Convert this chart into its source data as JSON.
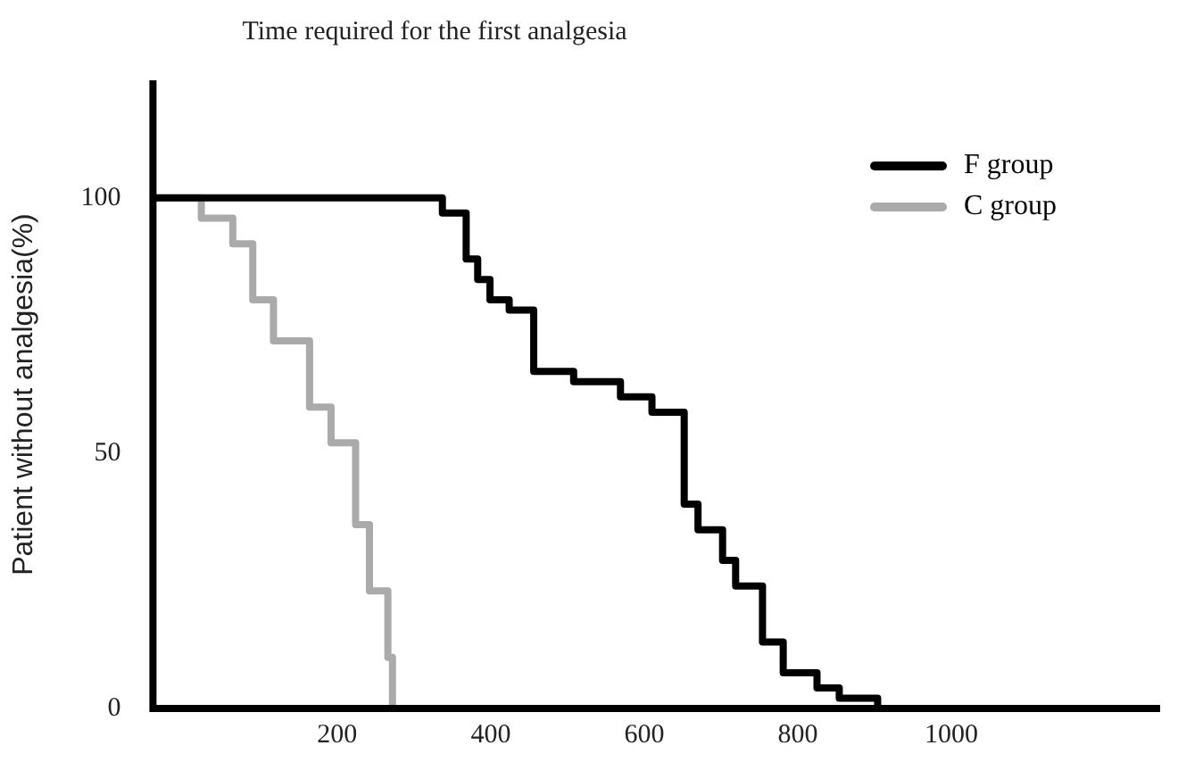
{
  "chart_data": {
    "type": "step",
    "title": "Time required for the first analgesia",
    "ylabel": "Patient without analgesia(%)",
    "xlim": [
      -40,
      1272
    ],
    "xticks": [
      200,
      400,
      600,
      800,
      1000
    ],
    "ylim": [
      0,
      123
    ],
    "yticks": [
      0,
      50,
      100
    ],
    "grid": false,
    "legend": "top right",
    "marker": "none",
    "line_style": "solid",
    "series": [
      {
        "name": "F group",
        "color": "#000000",
        "x": [
          -40,
          337,
          368,
          383,
          399,
          424,
          456,
          508,
          569,
          610,
          652,
          670,
          702,
          719,
          754,
          781,
          825,
          854,
          904
        ],
        "values": [
          100,
          97,
          88,
          84,
          80,
          78,
          66,
          64,
          61,
          58,
          40,
          35,
          29,
          24,
          13,
          7,
          4,
          2,
          0
        ]
      },
      {
        "name": "C group",
        "color": "#aaaaaa",
        "x": [
          -40,
          23,
          64,
          90,
          117,
          164,
          192,
          224,
          242,
          266,
          272
        ],
        "values": [
          100,
          96,
          91,
          80,
          72,
          59,
          52,
          36,
          23,
          10,
          0
        ]
      }
    ]
  }
}
